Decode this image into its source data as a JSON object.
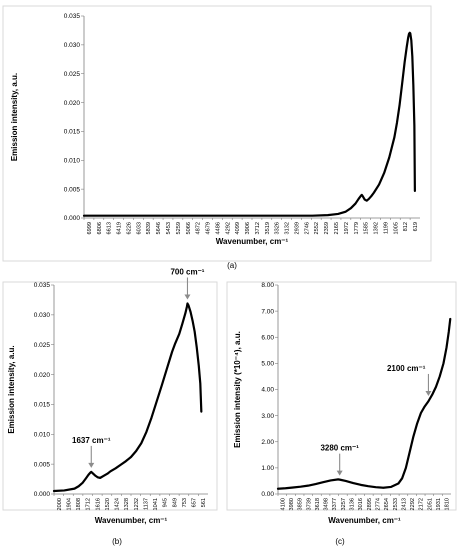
{
  "chart_data": [
    {
      "panel_id": "a",
      "caption": "(a)",
      "type": "line",
      "ylabel": "Emission intensity, a.u.",
      "xlabel": "Wavenumber, cm⁻¹",
      "x_reversed": true,
      "xlim": [
        7062,
        500
      ],
      "ylim": [
        0,
        0.035
      ],
      "grid": false,
      "yticks": [
        0,
        0.005,
        0.01,
        0.015,
        0.02,
        0.025,
        0.03,
        0.035
      ],
      "ytick_labels": [
        "0.000",
        "0.005",
        "0.010",
        "0.015",
        "0.020",
        "0.025",
        "0.030",
        "0.035"
      ],
      "xtick_labels": [
        "6999",
        "6806",
        "6613",
        "6419",
        "6226",
        "6033",
        "5839",
        "5646",
        "5453",
        "5259",
        "5066",
        "4872",
        "4679",
        "4486",
        "4292",
        "4099",
        "3906",
        "3712",
        "3519",
        "3326",
        "3132",
        "2939",
        "2746",
        "2552",
        "2359",
        "2165",
        "1972",
        "1779",
        "1585",
        "1392",
        "1199",
        "1005",
        "812",
        "619"
      ],
      "series": [
        {
          "x": [
            7062,
            6000,
            5000,
            4000,
            3000,
            2600,
            2300,
            2100,
            1950,
            1850,
            1760,
            1700,
            1650,
            1637,
            1620,
            1580,
            1540,
            1500,
            1450,
            1400,
            1300,
            1200,
            1100,
            1000,
            950,
            900,
            850,
            800,
            760,
            730,
            715,
            700,
            690,
            670,
            650,
            630,
            610,
            600
          ],
          "y": [
            0.0004,
            0.0004,
            0.0004,
            0.0004,
            0.0004,
            0.0004,
            0.0005,
            0.0007,
            0.0011,
            0.0017,
            0.0025,
            0.0033,
            0.0039,
            0.004,
            0.0038,
            0.0032,
            0.003,
            0.0033,
            0.0038,
            0.0044,
            0.0058,
            0.0078,
            0.0105,
            0.014,
            0.0165,
            0.0195,
            0.0232,
            0.027,
            0.0296,
            0.0313,
            0.0319,
            0.0321,
            0.032,
            0.0308,
            0.028,
            0.023,
            0.016,
            0.0047
          ]
        }
      ]
    },
    {
      "panel_id": "b",
      "caption": "(b)",
      "type": "line",
      "ylabel": "Emission intensity, a.u.",
      "xlabel": "Wavenumber, cm⁻¹",
      "x_reversed": true,
      "xlim": [
        2000,
        500
      ],
      "ylim": [
        0,
        0.035
      ],
      "grid": false,
      "yticks": [
        0,
        0.005,
        0.01,
        0.015,
        0.02,
        0.025,
        0.03,
        0.035
      ],
      "ytick_labels": [
        "0.000",
        "0.005",
        "0.010",
        "0.015",
        "0.020",
        "0.025",
        "0.030",
        "0.035"
      ],
      "xtick_labels": [
        "2000",
        "1904",
        "1808",
        "1712",
        "1616",
        "1520",
        "1424",
        "1328",
        "1232",
        "1137",
        "1041",
        "945",
        "849",
        "753",
        "657",
        "561"
      ],
      "annotations": [
        {
          "label": "1637 cm⁻¹",
          "x": 1637,
          "y": 0.0037
        },
        {
          "label": "700 cm⁻¹",
          "x": 700,
          "y": 0.0319
        }
      ],
      "series": [
        {
          "x": [
            2000,
            1900,
            1800,
            1760,
            1720,
            1690,
            1665,
            1645,
            1637,
            1625,
            1600,
            1575,
            1550,
            1520,
            1480,
            1450,
            1400,
            1350,
            1300,
            1250,
            1200,
            1150,
            1100,
            1050,
            1000,
            950,
            900,
            850,
            820,
            780,
            750,
            720,
            705,
            700,
            690,
            670,
            650,
            630,
            610,
            590,
            575,
            565
          ],
          "y": [
            0.0005,
            0.0006,
            0.0009,
            0.0013,
            0.0019,
            0.0026,
            0.0032,
            0.0036,
            0.0037,
            0.0035,
            0.0031,
            0.0028,
            0.0027,
            0.003,
            0.0034,
            0.0038,
            0.0043,
            0.0049,
            0.0055,
            0.0062,
            0.0072,
            0.0085,
            0.0104,
            0.0128,
            0.0155,
            0.0182,
            0.021,
            0.0238,
            0.0252,
            0.0268,
            0.0285,
            0.0303,
            0.0314,
            0.0319,
            0.0316,
            0.0305,
            0.029,
            0.0272,
            0.0246,
            0.0215,
            0.0185,
            0.0138
          ]
        }
      ]
    },
    {
      "panel_id": "c",
      "caption": "(c)",
      "type": "line",
      "ylabel": "Emission intensity (*10⁻⁴), a.u.",
      "xlabel": "Wavenumber, cm⁻¹",
      "x_reversed": true,
      "xlim": [
        4100,
        1800
      ],
      "ylim": [
        0,
        8
      ],
      "grid": false,
      "yticks": [
        0,
        1,
        2,
        3,
        4,
        5,
        6,
        7,
        8
      ],
      "ytick_labels": [
        "0.00",
        "1.00",
        "2.00",
        "3.00",
        "4.00",
        "5.00",
        "6.00",
        "7.00",
        "8.00"
      ],
      "xtick_labels": [
        "4100",
        "3980",
        "3859",
        "3739",
        "3618",
        "3498",
        "3377",
        "3257",
        "3136",
        "3016",
        "2895",
        "2774",
        "2654",
        "2533",
        "2413",
        "2292",
        "2172",
        "2051",
        "1931",
        "1810"
      ],
      "annotations": [
        {
          "label": "3280 cm⁻¹",
          "x": 3280,
          "y": 0.55
        },
        {
          "label": "2100 cm⁻¹",
          "x": 2100,
          "y": 3.6
        }
      ],
      "series": [
        {
          "x": [
            4100,
            4000,
            3900,
            3800,
            3700,
            3600,
            3500,
            3400,
            3300,
            3280,
            3200,
            3100,
            3000,
            2900,
            2800,
            2700,
            2600,
            2500,
            2450,
            2400,
            2350,
            2300,
            2250,
            2200,
            2150,
            2100,
            2050,
            2000,
            1950,
            1900,
            1860,
            1830,
            1810
          ],
          "y": [
            0.2,
            0.22,
            0.25,
            0.28,
            0.32,
            0.38,
            0.45,
            0.52,
            0.56,
            0.55,
            0.5,
            0.42,
            0.35,
            0.3,
            0.26,
            0.24,
            0.27,
            0.4,
            0.6,
            1.0,
            1.6,
            2.2,
            2.7,
            3.1,
            3.35,
            3.55,
            3.8,
            4.1,
            4.5,
            5.0,
            5.6,
            6.2,
            6.7
          ]
        }
      ]
    }
  ]
}
